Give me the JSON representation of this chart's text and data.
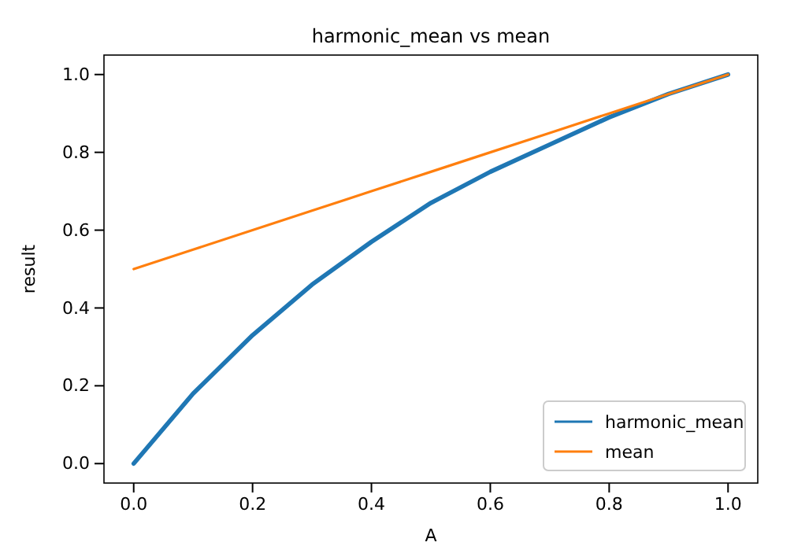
{
  "chart_data": {
    "type": "line",
    "title": "harmonic_mean vs mean",
    "xlabel": "A",
    "ylabel": "result",
    "xlim": [
      -0.05,
      1.05
    ],
    "ylim": [
      -0.05,
      1.05
    ],
    "xticks": [
      {
        "value": 0,
        "label": "0.0"
      },
      {
        "value": 0.2,
        "label": "0.2"
      },
      {
        "value": 0.4,
        "label": "0.4"
      },
      {
        "value": 0.6,
        "label": "0.6"
      },
      {
        "value": 0.8,
        "label": "0.8"
      },
      {
        "value": 1,
        "label": "1.0"
      }
    ],
    "yticks": [
      {
        "value": 0,
        "label": "0.0"
      },
      {
        "value": 0.2,
        "label": "0.2"
      },
      {
        "value": 0.4,
        "label": "0.4"
      },
      {
        "value": 0.6,
        "label": "0.6"
      },
      {
        "value": 0.8,
        "label": "0.8"
      },
      {
        "value": 1,
        "label": "1.0"
      }
    ],
    "x": [
      0,
      0.1,
      0.2,
      0.3,
      0.4,
      0.5,
      0.6,
      0.7,
      0.8,
      0.9,
      1
    ],
    "series": [
      {
        "name": "harmonic_mean",
        "color": "#1f77b4",
        "values": [
          0,
          0.18,
          0.33,
          0.46,
          0.57,
          0.67,
          0.75,
          0.82,
          0.89,
          0.95,
          1
        ]
      },
      {
        "name": "mean",
        "color": "#ff7f0e",
        "values": [
          0.5,
          0.55,
          0.6,
          0.65,
          0.7,
          0.75,
          0.8,
          0.85,
          0.9,
          0.95,
          1
        ]
      }
    ],
    "grid": false,
    "legend": "bottom right",
    "marker": "none",
    "line_style": "solid"
  }
}
